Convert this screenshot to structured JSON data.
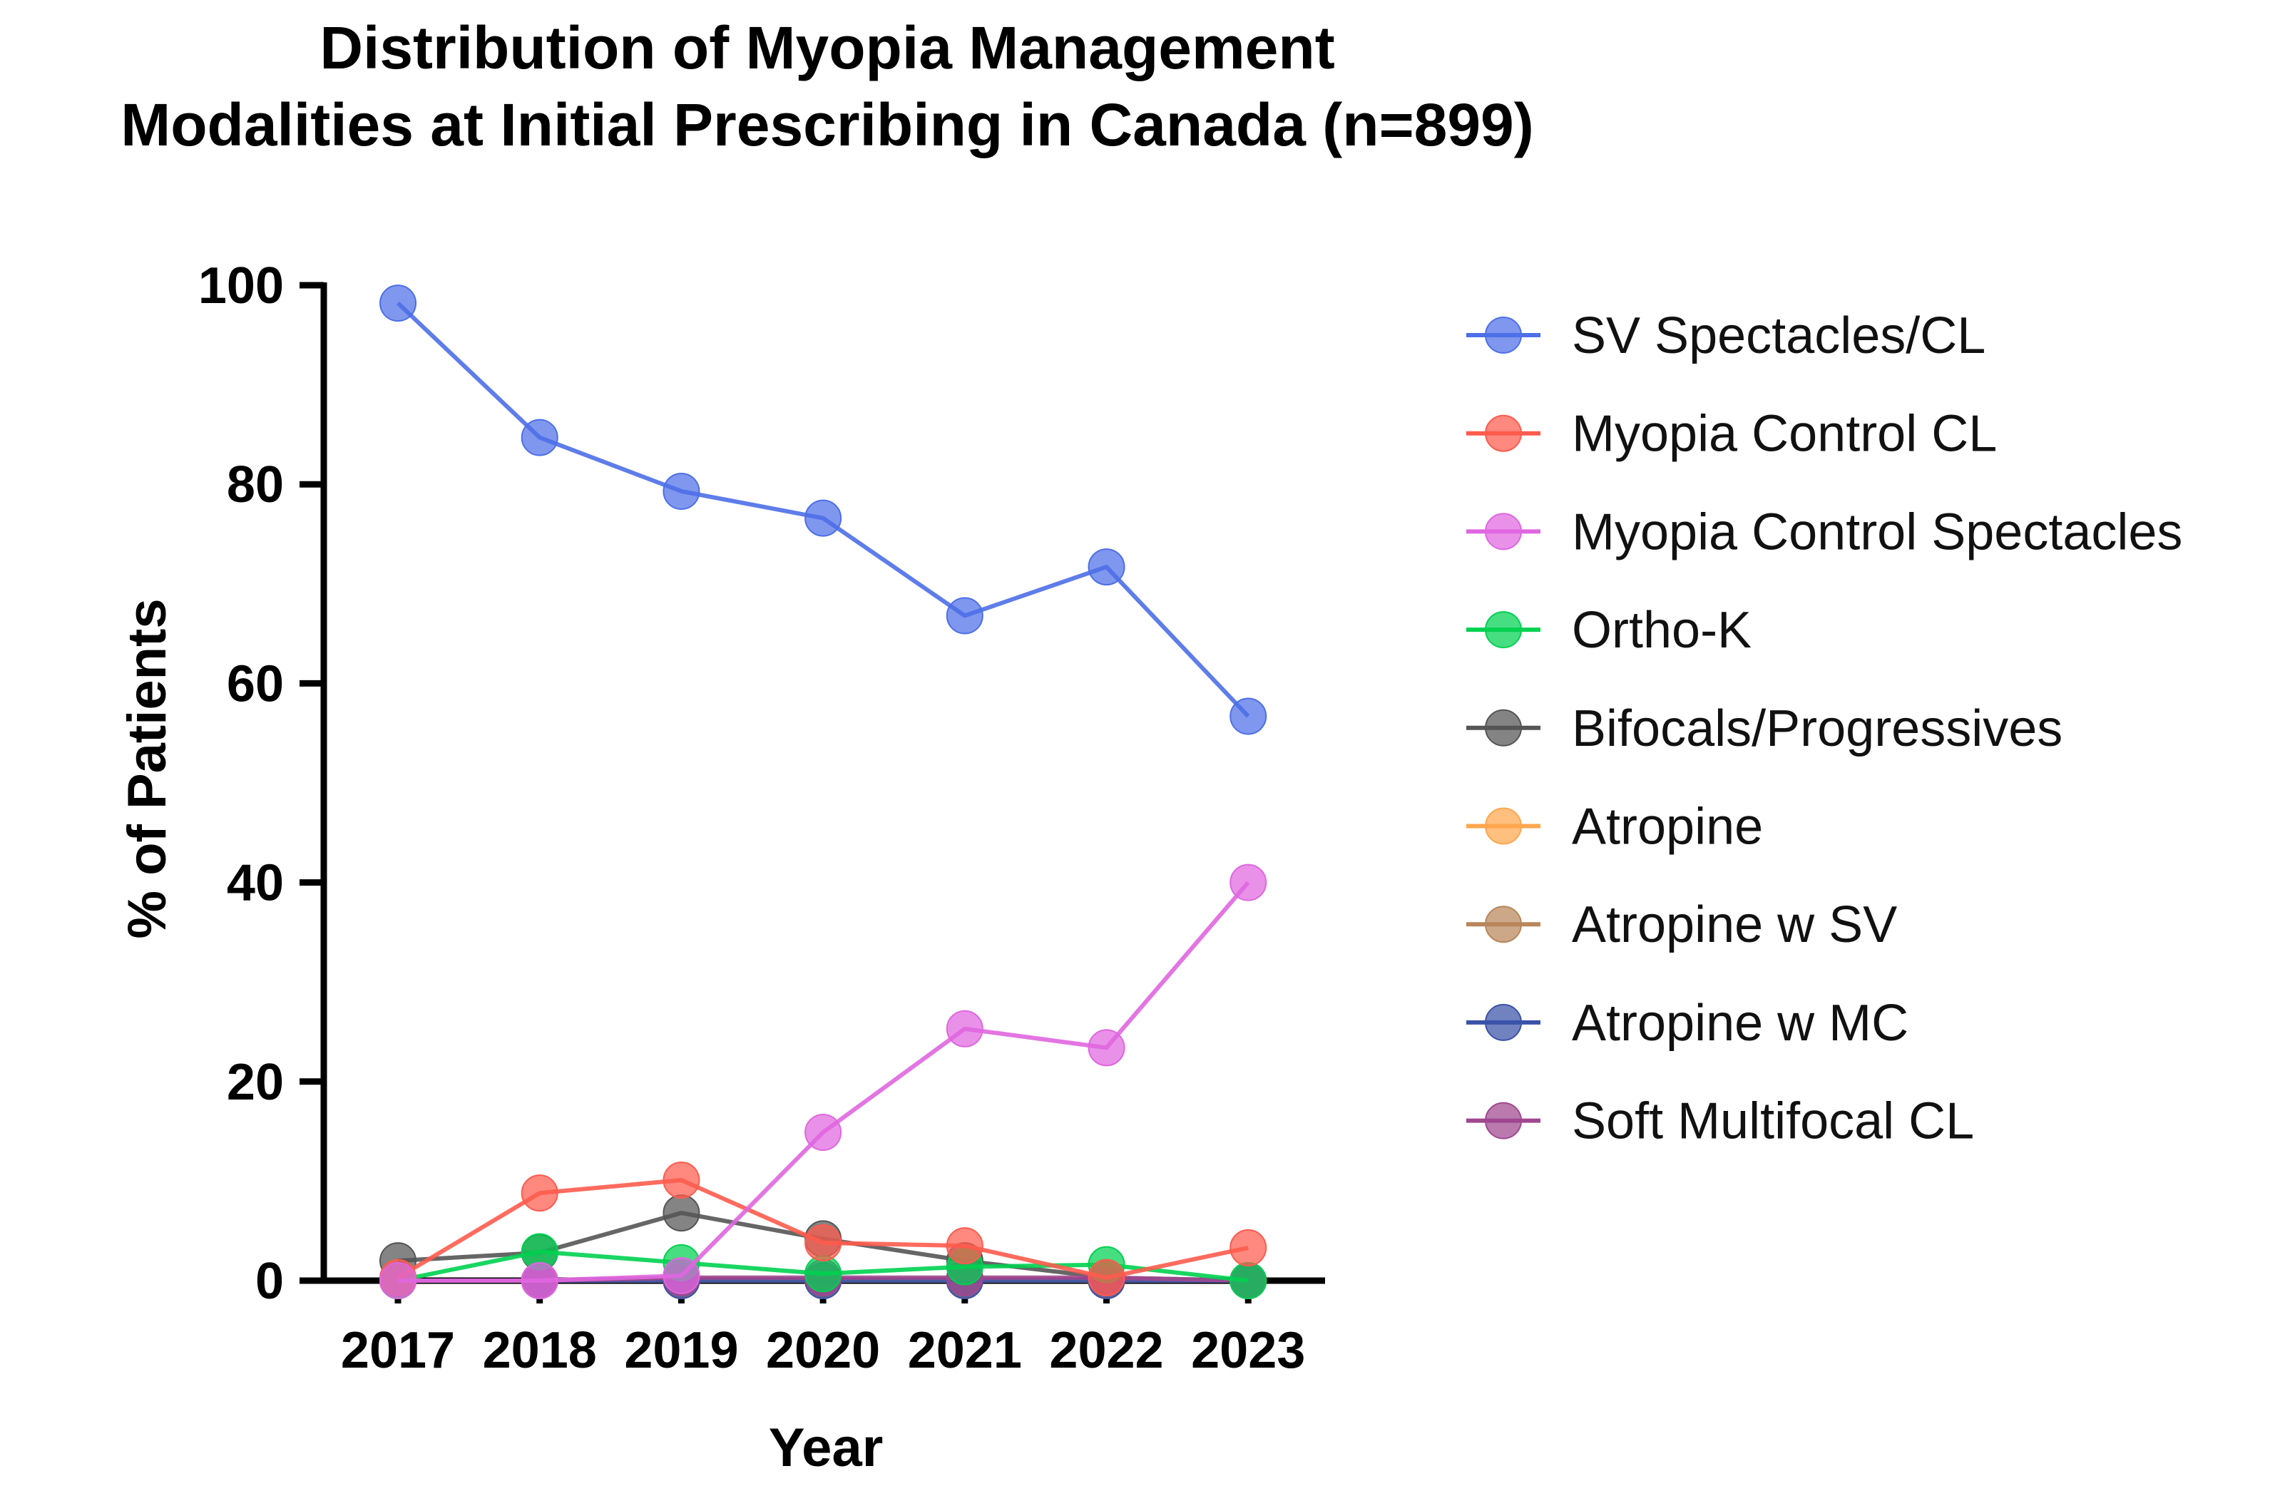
{
  "chart_data": {
    "type": "line",
    "title": [
      "Distribution of Myopia Management",
      "Modalities at Initial Prescribing in Canada (n=899)"
    ],
    "xlabel": "Year",
    "ylabel": "% of Patients",
    "categories": [
      "2017",
      "2018",
      "2019",
      "2020",
      "2021",
      "2022",
      "2023"
    ],
    "ylim": [
      0,
      100
    ],
    "yticks": [
      "0",
      "20",
      "40",
      "60",
      "80",
      "100"
    ],
    "legend_position": "right",
    "series": [
      {
        "name": "Bifocals/Progressives",
        "color": "#555555",
        "values": [
          2,
          2.8,
          6.8,
          4.2,
          2,
          0.3,
          0
        ]
      },
      {
        "name": "Atropine",
        "color": "#FFA64D",
        "values": [
          0,
          0,
          0,
          0,
          0,
          0,
          0
        ]
      },
      {
        "name": "Atropine w SV",
        "color": "#B8865A",
        "values": [
          0,
          0,
          0,
          0,
          0,
          0,
          0
        ]
      },
      {
        "name": "Atropine w MC",
        "color": "#3A52A8",
        "values": [
          0,
          0,
          0,
          0,
          0,
          0,
          0
        ]
      },
      {
        "name": "Soft Multifocal CL",
        "color": "#A0478F",
        "values": [
          0,
          0,
          0.3,
          0.3,
          0.3,
          0.3,
          0
        ]
      },
      {
        "name": "Ortho-K",
        "color": "#00D150",
        "values": [
          0,
          2.9,
          1.8,
          0.7,
          1.4,
          1.6,
          0
        ]
      },
      {
        "name": "Myopia Control CL",
        "color": "#FF5B4D",
        "values": [
          0.3,
          8.8,
          10.1,
          3.8,
          3.5,
          0.3,
          3.3
        ]
      },
      {
        "name": "Myopia Control Spectacles",
        "color": "#E066E0",
        "values": [
          0,
          0,
          0.5,
          14.9,
          25.3,
          23.4,
          40
        ]
      },
      {
        "name": "SV Spectacles/CL",
        "color": "#4D6FE8",
        "values": [
          98.2,
          84.7,
          79.3,
          76.6,
          66.8,
          71.7,
          56.7
        ]
      }
    ],
    "legend_order": [
      "SV Spectacles/CL",
      "Myopia Control CL",
      "Myopia Control Spectacles",
      "Ortho-K",
      "Bifocals/Progressives",
      "Atropine",
      "Atropine w SV",
      "Atropine w MC",
      "Soft Multifocal CL"
    ]
  }
}
